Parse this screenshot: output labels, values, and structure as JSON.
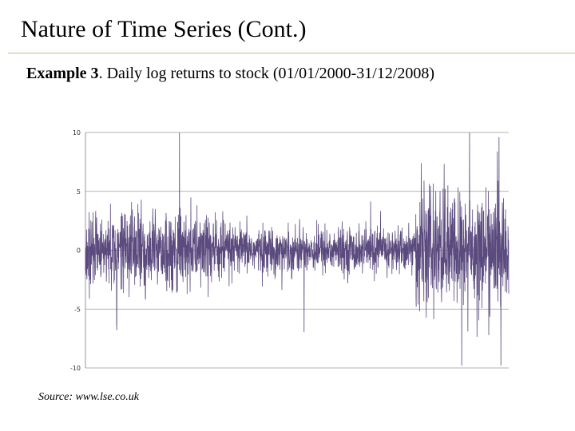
{
  "slide": {
    "title": "Nature of Time Series (Cont.)",
    "subtitle_bold": "Example 3",
    "subtitle_rest": ". Daily log returns to stock (01/01/2000-31/12/2008)",
    "source": "Source: www.lse.co.uk"
  },
  "chart_data": {
    "type": "line",
    "title": "",
    "xlabel": "",
    "ylabel": "",
    "x_range": [
      "01/01/2000",
      "31/12/2008"
    ],
    "ylim": [
      -10,
      10
    ],
    "yticks": [
      10,
      5,
      0,
      -5,
      -10
    ],
    "ytick_labels": [
      "10",
      "5",
      "0",
      "-5",
      "-10"
    ],
    "grid": "horizontal",
    "legend": "none",
    "series_color": "#5b4a7e",
    "grid_color": "#9a9a9a",
    "approx_observations": 2270,
    "notable_extremes": [
      {
        "date_approx": "2002-01",
        "value": 10.0
      },
      {
        "date_approx": "2000-09",
        "value": -6.8
      },
      {
        "date_approx": "2008-01",
        "value": -9.8
      },
      {
        "date_approx": "2008-03",
        "value": 10.0
      },
      {
        "date_approx": "2008-11",
        "value": -9.8
      }
    ],
    "volatility_regimes": [
      {
        "period": "2000-2002",
        "typical_abs_return": 1.8
      },
      {
        "period": "2003-2006",
        "typical_abs_return": 1.1
      },
      {
        "period": "2007-2008",
        "typical_abs_return": 2.8
      }
    ]
  }
}
